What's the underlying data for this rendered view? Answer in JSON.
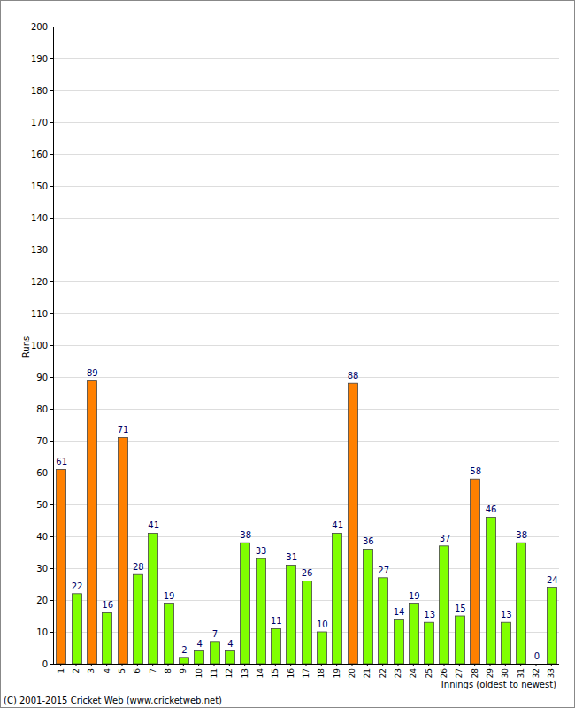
{
  "chart_data": {
    "type": "bar",
    "y_label": "Runs",
    "x_label": "Innings (oldest to newest)",
    "annotations": [
      "(C) 2001-2015 Cricket Web (www.cricketweb.net)"
    ],
    "categories": [
      "1",
      "2",
      "3",
      "4",
      "5",
      "6",
      "7",
      "8",
      "9",
      "10",
      "11",
      "12",
      "13",
      "14",
      "15",
      "16",
      "17",
      "18",
      "19",
      "20",
      "21",
      "22",
      "23",
      "24",
      "25",
      "26",
      "27",
      "28",
      "29",
      "30",
      "31",
      "32",
      "33"
    ],
    "values": [
      61,
      22,
      89,
      16,
      71,
      28,
      41,
      19,
      2,
      4,
      7,
      4,
      38,
      33,
      11,
      31,
      26,
      10,
      41,
      88,
      36,
      27,
      14,
      19,
      13,
      37,
      15,
      58,
      46,
      13,
      38,
      0,
      24
    ],
    "colors": [
      "#ff8000",
      "#80ff00",
      "#ff8000",
      "#80ff00",
      "#ff8000",
      "#80ff00",
      "#80ff00",
      "#80ff00",
      "#80ff00",
      "#80ff00",
      "#80ff00",
      "#80ff00",
      "#80ff00",
      "#80ff00",
      "#80ff00",
      "#80ff00",
      "#80ff00",
      "#80ff00",
      "#80ff00",
      "#ff8000",
      "#80ff00",
      "#80ff00",
      "#80ff00",
      "#80ff00",
      "#80ff00",
      "#80ff00",
      "#80ff00",
      "#ff8000",
      "#80ff00",
      "#80ff00",
      "#80ff00",
      "#80ff00",
      "#80ff00"
    ],
    "ylim": [
      0,
      200
    ],
    "yticks": [
      0,
      10,
      20,
      30,
      40,
      50,
      60,
      70,
      80,
      90,
      100,
      110,
      120,
      130,
      140,
      150,
      160,
      170,
      180,
      190,
      200
    ],
    "grid": true,
    "data_labels": true
  }
}
